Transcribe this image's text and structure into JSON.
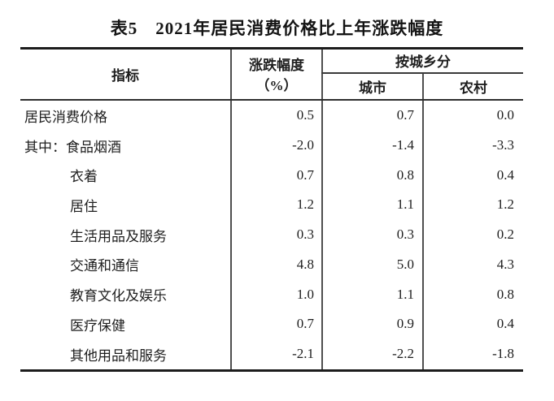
{
  "title": "表5　2021年居民消费价格比上年涨跌幅度",
  "table": {
    "header": {
      "indicator": "指标",
      "change_line1": "涨跌幅度",
      "change_line2": "（%）",
      "by_region": "按城乡分",
      "urban": "城市",
      "rural": "农村"
    },
    "rows": [
      {
        "label": "居民消费价格",
        "change": "0.5",
        "urban": "0.7",
        "rural": "0.0"
      },
      {
        "label": "其中：食品烟酒",
        "change": "-2.0",
        "urban": "-1.4",
        "rural": "-3.3"
      },
      {
        "label": "衣着",
        "change": "0.7",
        "urban": "0.8",
        "rural": "0.4"
      },
      {
        "label": "居住",
        "change": "1.2",
        "urban": "1.1",
        "rural": "1.2"
      },
      {
        "label": "生活用品及服务",
        "change": "0.3",
        "urban": "0.3",
        "rural": "0.2"
      },
      {
        "label": "交通和通信",
        "change": "4.8",
        "urban": "5.0",
        "rural": "4.3"
      },
      {
        "label": "教育文化及娱乐",
        "change": "1.0",
        "urban": "1.1",
        "rural": "0.8"
      },
      {
        "label": "医疗保健",
        "change": "0.7",
        "urban": "0.9",
        "rural": "0.4"
      },
      {
        "label": "其他用品和服务",
        "change": "-2.1",
        "urban": "-2.2",
        "rural": "-1.8"
      }
    ]
  },
  "chart_data": {
    "type": "table",
    "title": "表5　2021年居民消费价格比上年涨跌幅度",
    "columns": [
      "指标",
      "涨跌幅度（%）",
      "按城乡分-城市",
      "按城乡分-农村"
    ],
    "categories": [
      "居民消费价格",
      "其中：食品烟酒",
      "衣着",
      "居住",
      "生活用品及服务",
      "交通和通信",
      "教育文化及娱乐",
      "医疗保健",
      "其他用品和服务"
    ],
    "series": [
      {
        "name": "涨跌幅度（%）",
        "values": [
          0.5,
          -2.0,
          0.7,
          1.2,
          0.3,
          4.8,
          1.0,
          0.7,
          -2.1
        ]
      },
      {
        "name": "城市",
        "values": [
          0.7,
          -1.4,
          0.8,
          1.1,
          0.3,
          5.0,
          1.1,
          0.9,
          -2.2
        ]
      },
      {
        "name": "农村",
        "values": [
          0.0,
          -3.3,
          0.4,
          1.2,
          0.2,
          4.3,
          0.8,
          0.4,
          -1.8
        ]
      }
    ],
    "colors": {
      "text": "#1a1a1a",
      "rule_thick": "#1c1c1c",
      "rule_thin": "#4f4f4f",
      "background": "#ffffff"
    }
  }
}
